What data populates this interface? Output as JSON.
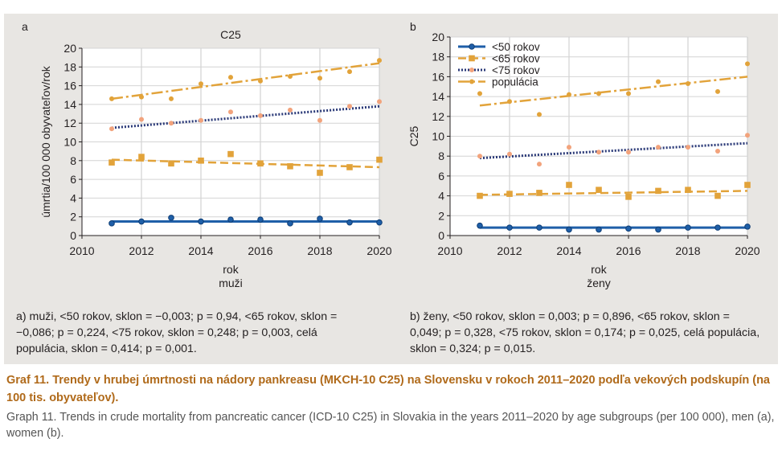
{
  "colors": {
    "lt50": "#1f5fa8",
    "lt65": "#e2a33a",
    "lt75": "#f2a37c",
    "pop": "#e2a33a",
    "trend_lt75": "#2b3a78",
    "panel_bg": "#e8e6e3",
    "caption": "#b06a1a"
  },
  "notes": {
    "a": "a) muži, <50 rokov, sklon = −0,003; p = 0,94, <65 rokov, sklon = −0,086; p = 0,224, <75 rokov, sklon = 0,248; p = 0,003, celá populácia, sklon = 0,414; p = 0,001.",
    "b": "b) ženy, <50 rokov, sklon = 0,003; p = 0,896, <65 rokov, sklon = 0,049; p = 0,328, <75 rokov, sklon = 0,174; p = 0,025, celá populácia, sklon = 0,324; p = 0,015."
  },
  "caption": {
    "title": "Graf 11. Trendy v hrubej úmrtnosti na nádory pankreasu (MKCH-10 C25) na Slovensku v rokoch 2011–2020 podľa vekových podskupín (na 100 tis. obyvateľov).",
    "english": "Graph 11. Trends in crude mortality from pancreatic cancer (ICD-10 C25) in Slovakia in the years 2011–2020 by age subgroups (per 100 000), men (a), women (b)."
  },
  "chart_data": [
    {
      "type": "scatter",
      "panel": "a",
      "title": "C25",
      "xlabel": "rok",
      "subxlabel": "muži",
      "ylabel": "úmrtia/100 000 obyvateľov/rok",
      "xlim": [
        2010,
        2020
      ],
      "ylim": [
        0,
        20
      ],
      "xticks": [
        2010,
        2012,
        2014,
        2016,
        2018,
        2020
      ],
      "yticks": [
        0,
        2,
        4,
        6,
        8,
        10,
        12,
        14,
        16,
        18,
        20
      ],
      "legend": "none",
      "x": [
        2011,
        2012,
        2013,
        2014,
        2015,
        2016,
        2017,
        2018,
        2019,
        2020
      ],
      "series": [
        {
          "name": "<50 rokov",
          "key": "lt50",
          "values": [
            1.3,
            1.5,
            1.9,
            1.5,
            1.7,
            1.7,
            1.3,
            1.8,
            1.4,
            1.4
          ],
          "trend": [
            1.5,
            1.5
          ]
        },
        {
          "name": "<65 rokov",
          "key": "lt65",
          "values": [
            7.8,
            8.4,
            7.7,
            8.0,
            8.7,
            7.7,
            7.4,
            6.7,
            7.3,
            8.1
          ],
          "trend": [
            8.1,
            7.3
          ]
        },
        {
          "name": "<75 rokov",
          "key": "lt75",
          "values": [
            11.4,
            12.4,
            12.0,
            12.3,
            13.2,
            12.8,
            13.4,
            12.3,
            13.8,
            14.3
          ],
          "trend": [
            11.5,
            13.8
          ]
        },
        {
          "name": "populácia",
          "key": "pop",
          "values": [
            14.6,
            14.8,
            14.6,
            16.2,
            16.9,
            16.5,
            17.0,
            16.8,
            17.5,
            18.7
          ],
          "trend": [
            14.6,
            18.4
          ]
        }
      ]
    },
    {
      "type": "scatter",
      "panel": "b",
      "title": "",
      "xlabel": "rok",
      "subxlabel": "ženy",
      "ylabel": "C25",
      "xlim": [
        2010,
        2020
      ],
      "ylim": [
        0,
        20
      ],
      "xticks": [
        2010,
        2012,
        2014,
        2016,
        2018,
        2020
      ],
      "yticks": [
        0,
        2,
        4,
        6,
        8,
        10,
        12,
        14,
        16,
        18,
        20
      ],
      "legend": "top-left",
      "x": [
        2011,
        2012,
        2013,
        2014,
        2015,
        2016,
        2017,
        2018,
        2019,
        2020
      ],
      "series": [
        {
          "name": "<50 rokov",
          "key": "lt50",
          "values": [
            1.0,
            0.8,
            0.8,
            0.6,
            0.6,
            0.7,
            0.6,
            0.8,
            0.8,
            0.9
          ],
          "trend": [
            0.8,
            0.8
          ]
        },
        {
          "name": "<65 rokov",
          "key": "lt65",
          "values": [
            4.0,
            4.2,
            4.3,
            5.1,
            4.6,
            3.9,
            4.5,
            4.6,
            4.0,
            5.1
          ],
          "trend": [
            4.1,
            4.5
          ]
        },
        {
          "name": "<75 rokov",
          "key": "lt75",
          "values": [
            8.0,
            8.2,
            7.2,
            8.9,
            8.4,
            8.4,
            8.9,
            8.9,
            8.5,
            10.1
          ],
          "trend": [
            7.8,
            9.3
          ]
        },
        {
          "name": "populácia",
          "key": "pop",
          "values": [
            14.3,
            13.5,
            12.2,
            14.2,
            14.3,
            14.3,
            15.5,
            15.3,
            14.5,
            17.3
          ],
          "trend": [
            13.1,
            16.0
          ]
        }
      ]
    }
  ]
}
